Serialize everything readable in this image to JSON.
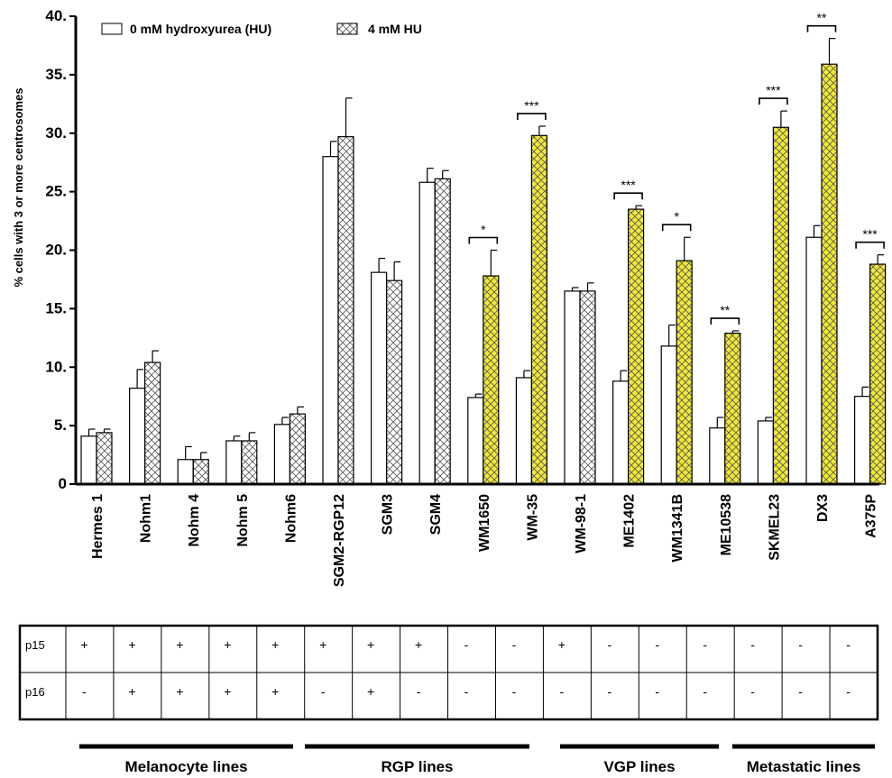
{
  "chart_data": {
    "type": "bar",
    "ylabel": "% cells with 3 or more centrosomes",
    "ylim": [
      0,
      40
    ],
    "yticks": [
      0,
      5,
      10,
      15,
      20,
      25,
      30,
      35,
      40
    ],
    "ytick_labels": [
      "0",
      "5.",
      "10.",
      "15.",
      "20.",
      "25.",
      "30.",
      "35.",
      "40."
    ],
    "legend": {
      "position": "top-left",
      "items": [
        "0 mM hydroxyurea (HU)",
        "4 mM HU"
      ]
    },
    "categories": [
      "Hermes 1",
      "Nohm1",
      "Nohm 4",
      "Nohm 5",
      "Nohm6",
      "SGM2-RGP12",
      "SGM3",
      "SGM4",
      "WM1650",
      "WM-35",
      "WM-98-1",
      "ME1402",
      "WM1341B",
      "ME10538",
      "SKMEL23",
      "DX3",
      "A375P"
    ],
    "series": [
      {
        "name": "0 mM hydroxyurea (HU)",
        "values": [
          4.1,
          8.2,
          2.1,
          3.7,
          5.1,
          28.0,
          18.1,
          25.8,
          7.4,
          9.1,
          16.5,
          8.8,
          11.8,
          4.8,
          5.4,
          21.1,
          7.5
        ],
        "errors": [
          0.6,
          1.6,
          1.1,
          0.4,
          0.6,
          1.3,
          1.2,
          1.2,
          0.3,
          0.6,
          0.3,
          0.9,
          1.8,
          0.9,
          0.3,
          1.0,
          0.8
        ]
      },
      {
        "name": "4 mM HU",
        "values": [
          4.4,
          10.4,
          2.1,
          3.7,
          6.0,
          29.7,
          17.4,
          26.1,
          17.8,
          29.8,
          16.5,
          23.5,
          19.1,
          12.9,
          30.5,
          35.9,
          18.8
        ],
        "errors": [
          0.3,
          1.0,
          0.6,
          0.7,
          0.6,
          3.3,
          1.6,
          0.7,
          2.2,
          0.8,
          0.7,
          0.3,
          2.0,
          0.2,
          1.4,
          2.2,
          0.8
        ]
      }
    ],
    "highlighted_hu": [
      false,
      false,
      false,
      false,
      false,
      false,
      false,
      false,
      true,
      true,
      false,
      true,
      true,
      true,
      true,
      true,
      true
    ],
    "significance": [
      {
        "category_index": 8,
        "label": "*"
      },
      {
        "category_index": 9,
        "label": "***"
      },
      {
        "category_index": 11,
        "label": "***"
      },
      {
        "category_index": 12,
        "label": "*"
      },
      {
        "category_index": 13,
        "label": "**"
      },
      {
        "category_index": 14,
        "label": "***"
      },
      {
        "category_index": 15,
        "label": "**"
      },
      {
        "category_index": 16,
        "label": "***"
      }
    ],
    "colors": {
      "highlight_fill": "#f0e83a",
      "bar_stroke": "#000000",
      "plain_fill": "#ffffff"
    }
  },
  "table": {
    "rows": [
      {
        "label": "p15",
        "values": [
          "+",
          "+",
          "+",
          "+",
          "+",
          "+",
          "+",
          "+",
          "-",
          "-",
          "+",
          "-",
          "-",
          "-",
          "-",
          "-",
          "-"
        ]
      },
      {
        "label": "p16",
        "values": [
          "-",
          "+",
          "+",
          "+",
          "+",
          "-",
          "+",
          "-",
          "-",
          "-",
          "-",
          "-",
          "-",
          "-",
          "-",
          "-",
          "-"
        ]
      }
    ]
  },
  "groups": [
    {
      "label": "Melanocyte lines",
      "first": 0,
      "last": 4
    },
    {
      "label": "RGP lines",
      "first": 5,
      "last": 9
    },
    {
      "label": "VGP lines",
      "first": 10,
      "last": 13
    },
    {
      "label": "Metastatic lines",
      "first": 14,
      "last": 16
    }
  ]
}
